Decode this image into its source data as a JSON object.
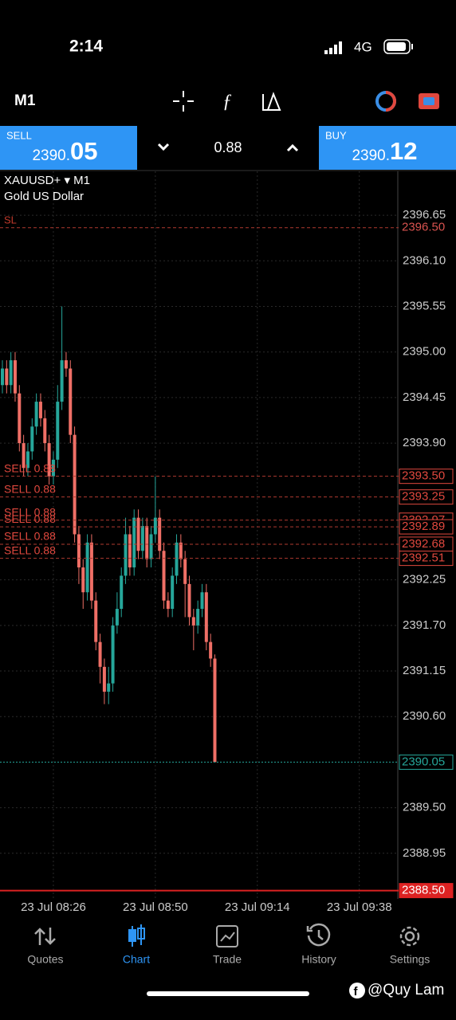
{
  "status_bar": {
    "time": "2:14",
    "network": "4G"
  },
  "toolbar": {
    "timeframe": "M1"
  },
  "trade_bar": {
    "sell_label": "SELL",
    "sell_main": "2390.",
    "sell_pips": "05",
    "spread": "0.88",
    "buy_label": "BUY",
    "buy_main": "2390.",
    "buy_pips": "12"
  },
  "chart_data": {
    "type": "candlestick",
    "symbol": "XAUUSD+ ▾ M1",
    "description": "Gold US Dollar",
    "sl_tag": "SL",
    "up_color": "#26a69a",
    "down_color": "#ef6f66",
    "grid": true,
    "open": [
      2394.6,
      2394.8,
      2394.6,
      2394.9,
      2394.5,
      2393.9,
      2393.6,
      2393.8,
      2394.1,
      2394.4,
      2394.2,
      2393.9,
      2393.5,
      2393.7,
      2394.4,
      2394.9,
      2394.8,
      2394.0,
      2392.8,
      2392.4,
      2392.1,
      2392.7,
      2392.0,
      2391.5,
      2391.2,
      2390.9,
      2391.0,
      2391.7,
      2391.9,
      2392.3,
      2392.8,
      2392.4,
      2393.0,
      2392.6,
      2392.9,
      2392.5,
      2392.8,
      2393.0,
      2392.6,
      2392.0,
      2391.9,
      2392.3,
      2392.7,
      2392.5,
      2392.2,
      2391.8,
      2391.7,
      2391.9,
      2392.1,
      2391.5,
      2391.3
    ],
    "high": [
      2394.9,
      2394.9,
      2395.0,
      2395.0,
      2394.6,
      2394.0,
      2393.9,
      2394.2,
      2394.5,
      2394.5,
      2394.3,
      2394.0,
      2393.8,
      2394.6,
      2395.55,
      2395.0,
      2394.9,
      2394.1,
      2392.9,
      2392.5,
      2392.8,
      2392.8,
      2392.1,
      2391.6,
      2391.3,
      2391.2,
      2391.8,
      2392.1,
      2392.4,
      2393.0,
      2392.9,
      2393.1,
      2393.1,
      2393.0,
      2393.0,
      2392.9,
      2393.5,
      2393.1,
      2392.7,
      2392.1,
      2392.4,
      2392.8,
      2392.8,
      2392.6,
      2392.3,
      2391.9,
      2392.0,
      2392.2,
      2392.2,
      2391.6,
      2391.35
    ],
    "low": [
      2394.5,
      2394.5,
      2394.5,
      2394.4,
      2393.8,
      2393.5,
      2393.5,
      2393.7,
      2394.0,
      2394.1,
      2393.8,
      2393.4,
      2393.4,
      2393.6,
      2394.3,
      2394.7,
      2393.9,
      2392.7,
      2392.2,
      2391.9,
      2392.0,
      2391.9,
      2391.4,
      2391.0,
      2390.75,
      2390.75,
      2390.9,
      2391.6,
      2391.8,
      2392.2,
      2392.3,
      2392.3,
      2392.5,
      2392.5,
      2392.4,
      2392.4,
      2392.7,
      2392.5,
      2391.9,
      2391.8,
      2391.8,
      2392.2,
      2392.4,
      2391.8,
      2391.7,
      2391.4,
      2391.6,
      2391.8,
      2391.4,
      2391.2,
      2390.05
    ],
    "close": [
      2394.8,
      2394.6,
      2394.9,
      2394.5,
      2393.9,
      2393.6,
      2393.8,
      2394.1,
      2394.4,
      2394.2,
      2393.9,
      2393.5,
      2393.7,
      2394.4,
      2394.9,
      2394.8,
      2394.0,
      2392.8,
      2392.4,
      2392.1,
      2392.7,
      2392.0,
      2391.5,
      2391.2,
      2390.9,
      2391.0,
      2391.7,
      2391.9,
      2392.3,
      2392.8,
      2392.4,
      2393.0,
      2392.6,
      2392.9,
      2392.5,
      2392.8,
      2393.0,
      2392.6,
      2392.0,
      2391.9,
      2392.3,
      2392.7,
      2392.5,
      2392.2,
      2391.8,
      2391.7,
      2391.9,
      2392.1,
      2391.5,
      2391.3,
      2390.05
    ],
    "xlim": [
      -0.56,
      93.25
    ],
    "xticks": [
      {
        "value": 12,
        "label": "23 Jul 08:26"
      },
      {
        "value": 36,
        "label": "23 Jul 08:50"
      },
      {
        "value": 60,
        "label": "23 Jul 09:14"
      },
      {
        "value": 84,
        "label": "23 Jul 09:38"
      }
    ],
    "ylim": [
      2388.4,
      2397.18
    ],
    "yticks": [
      2396.65,
      {
        "value": 2396.1,
        "label": "2396.10"
      },
      2395.55,
      {
        "value": 2395,
        "label": "2395.00"
      },
      2394.45,
      {
        "value": 2393.9,
        "label": "2393.90"
      },
      2392.25,
      {
        "value": 2391.7,
        "label": "2391.70"
      },
      2391.15,
      {
        "value": 2390.6,
        "label": "2390.60"
      },
      {
        "value": 2389.5,
        "label": "2389.50"
      },
      2388.95
    ],
    "stop_loss": {
      "value": 2396.5,
      "label": "2396.50"
    },
    "orders": [
      {
        "value": 2393.5,
        "label": "2393.50",
        "tag": "SELL 0.88"
      },
      {
        "value": 2393.25,
        "label": "2393.25",
        "tag": "SELL 0.88"
      },
      {
        "value": 2392.97,
        "label": "2392.97",
        "tag": "SELL 0.88"
      },
      {
        "value": 2392.89,
        "label": "2392.89",
        "tag": "SELL 0.88"
      },
      {
        "value": 2392.68,
        "label": "2392.68",
        "tag": "SELL 0.88"
      },
      {
        "value": 2392.51,
        "label": "2392.51",
        "tag": "SELL 0.88"
      }
    ],
    "current_price": {
      "value": 2390.05,
      "label": "2390.05"
    },
    "level_line": {
      "value": 2388.5,
      "label": "2388.50"
    }
  },
  "bottom_nav": {
    "items": [
      "Quotes",
      "Chart",
      "Trade",
      "History",
      "Settings"
    ],
    "active": 1
  },
  "watermark": "@Quy Lam"
}
